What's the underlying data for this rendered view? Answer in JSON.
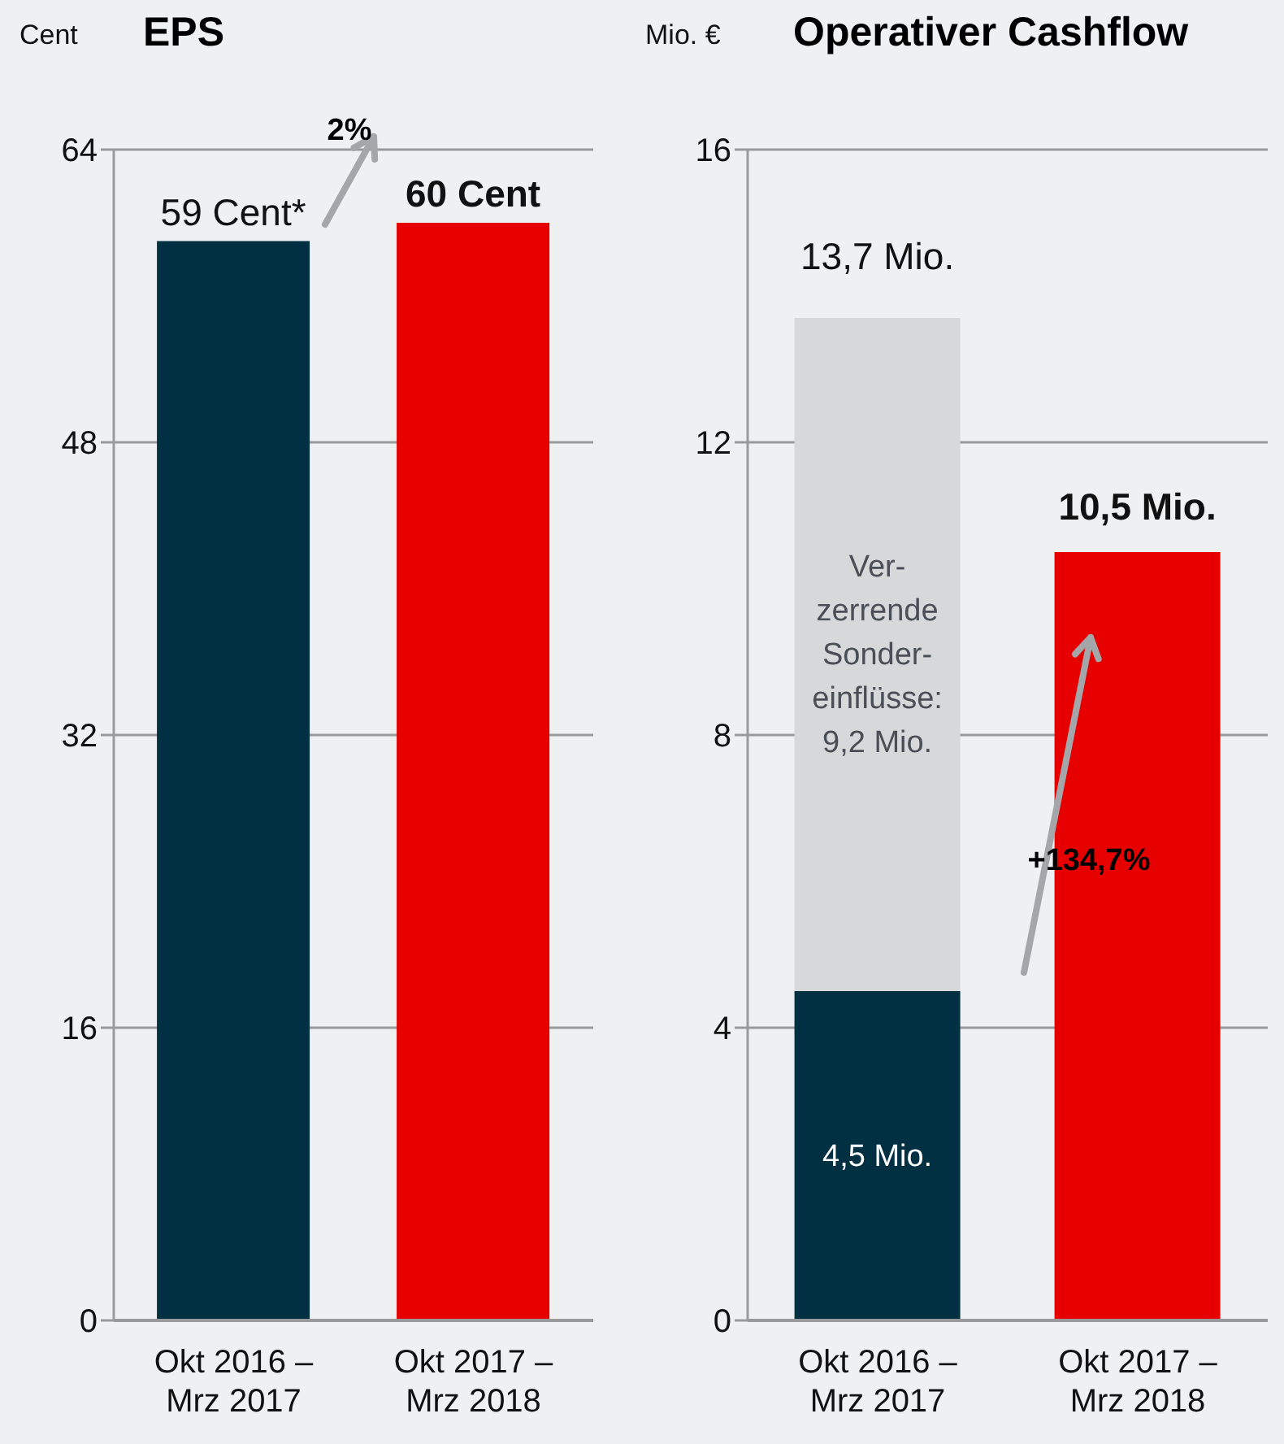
{
  "chart_data": [
    {
      "type": "bar",
      "title": "EPS",
      "ylabel": "Cent",
      "categories": [
        "Okt 2016 – Mrz 2017",
        "Okt 2017 – Mrz 2018"
      ],
      "values": [
        59,
        60
      ],
      "colors": [
        "#003042",
        "#e60000"
      ],
      "value_labels": [
        "59 Cent*",
        "60 Cent"
      ],
      "ylim": [
        0,
        64
      ],
      "yticks": [
        0,
        16,
        32,
        48,
        64
      ],
      "grid": "y",
      "annotations": [
        "2%"
      ]
    },
    {
      "type": "bar",
      "title": "Operativer Cashflow",
      "ylabel": "Mio. €",
      "categories": [
        "Okt 2016 – Mrz 2017",
        "Okt 2017 – Mrz 2018"
      ],
      "stacked": true,
      "series": [
        {
          "colors": [
            "#003042",
            "#e60000"
          ],
          "values": [
            4.5,
            10.5
          ],
          "value_labels": [
            "4,5 Mio.",
            null
          ]
        },
        {
          "color": "#d7d8da",
          "values": [
            9.2,
            null
          ],
          "value_labels": [
            "Ver-\nzerrende\nSonder-\neinflüsse:\n9,2 Mio.",
            null
          ]
        }
      ],
      "totals": [
        "13,7 Mio.",
        "10,5 Mio."
      ],
      "ylim": [
        0,
        16
      ],
      "yticks": [
        0,
        4,
        8,
        12,
        16
      ],
      "grid": "y",
      "annotations": [
        "+134,7%"
      ]
    }
  ]
}
